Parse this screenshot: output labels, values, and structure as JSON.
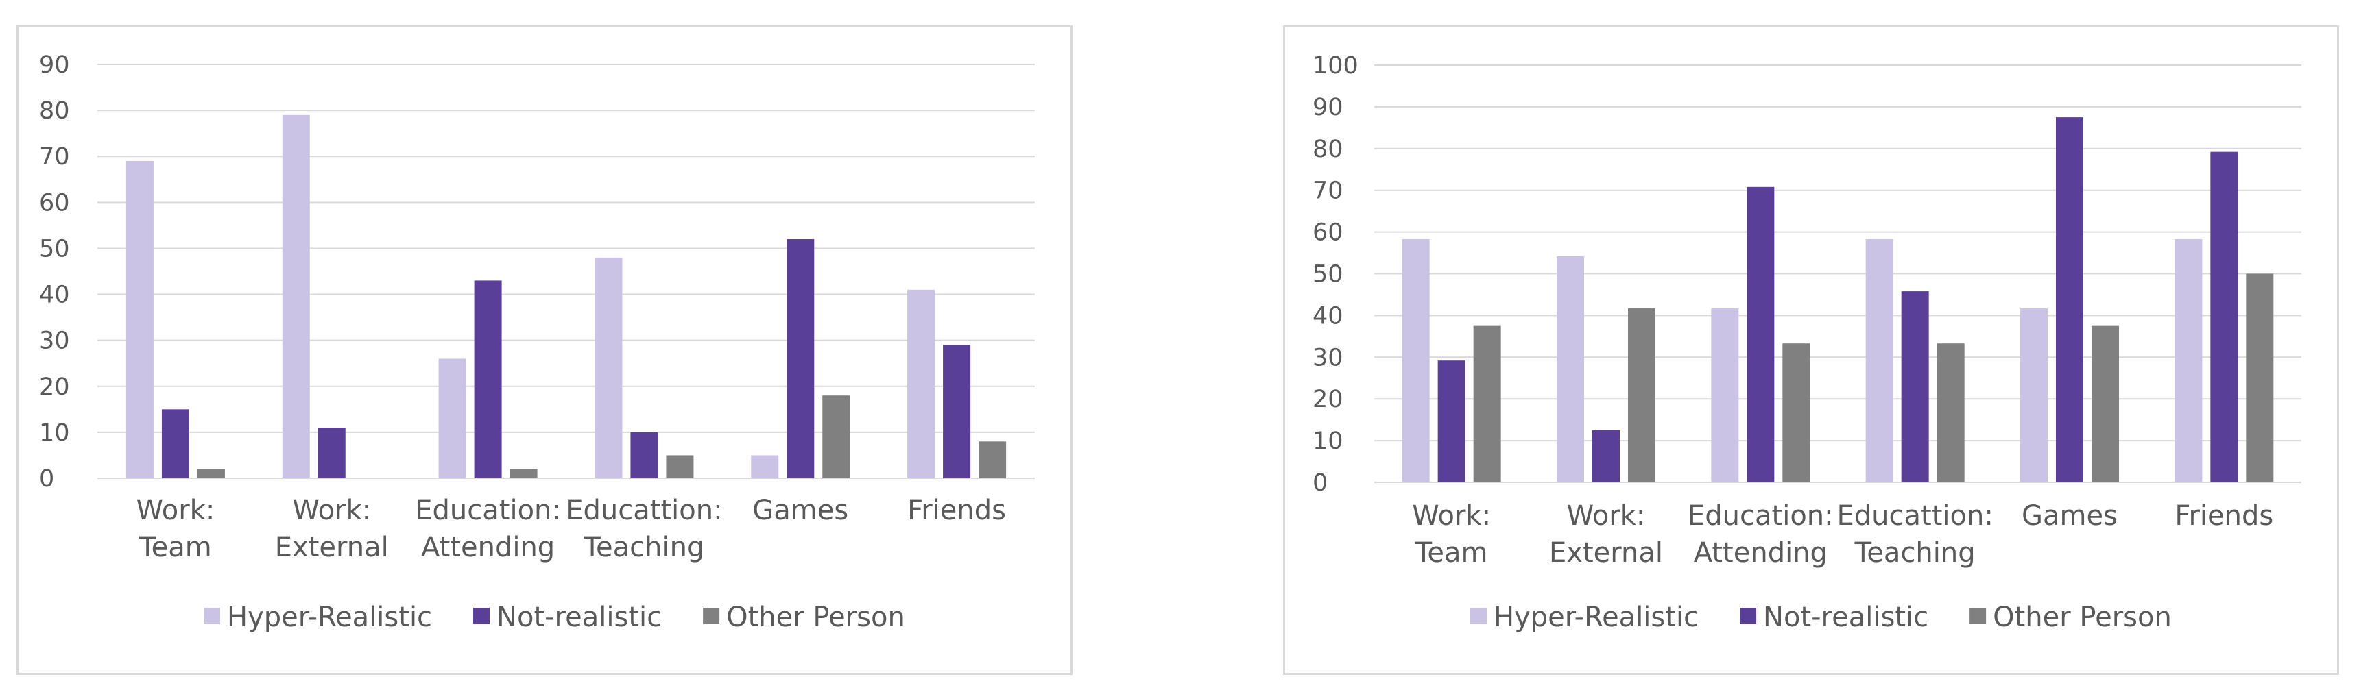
{
  "colors": {
    "hyper_realistic": "#cbc3e5",
    "not_realistic": "#5a3f99",
    "other_person": "#808080",
    "grid": "#d9d9d9",
    "text": "#595959"
  },
  "chart_data": [
    {
      "type": "bar",
      "categories": [
        [
          "Work:",
          "Team"
        ],
        [
          "Work:",
          "External"
        ],
        [
          "Education:",
          "Attending"
        ],
        [
          "Educattion:",
          "Teaching"
        ],
        [
          "Games"
        ],
        [
          "Friends"
        ]
      ],
      "series": [
        {
          "name": "Hyper-Realistic",
          "values": [
            69,
            79,
            26,
            48,
            5,
            41
          ]
        },
        {
          "name": "Not-realistic",
          "values": [
            15,
            11,
            43,
            10,
            52,
            29
          ]
        },
        {
          "name": "Other Person",
          "values": [
            2,
            0,
            2,
            5,
            18,
            8
          ]
        }
      ],
      "ylim": [
        0,
        90
      ],
      "yticks": [
        0,
        10,
        20,
        30,
        40,
        50,
        60,
        70,
        80,
        90
      ],
      "grid": true,
      "legend_position": "bottom"
    },
    {
      "type": "bar",
      "categories": [
        [
          "Work:",
          "Team"
        ],
        [
          "Work:",
          "External"
        ],
        [
          "Education:",
          "Attending"
        ],
        [
          "Educattion:",
          "Teaching"
        ],
        [
          "Games"
        ],
        [
          "Friends"
        ]
      ],
      "series": [
        {
          "name": "Hyper-Realistic",
          "values": [
            58.3,
            54.2,
            41.7,
            58.3,
            41.7,
            58.3
          ]
        },
        {
          "name": "Not-realistic",
          "values": [
            29.2,
            12.5,
            70.8,
            45.8,
            87.5,
            79.2
          ]
        },
        {
          "name": "Other Person",
          "values": [
            37.5,
            41.7,
            33.3,
            33.3,
            37.5,
            50
          ]
        }
      ],
      "ylim": [
        0,
        100
      ],
      "yticks": [
        0,
        10,
        20,
        30,
        40,
        50,
        60,
        70,
        80,
        90,
        100
      ],
      "grid": true,
      "legend_position": "bottom"
    }
  ]
}
